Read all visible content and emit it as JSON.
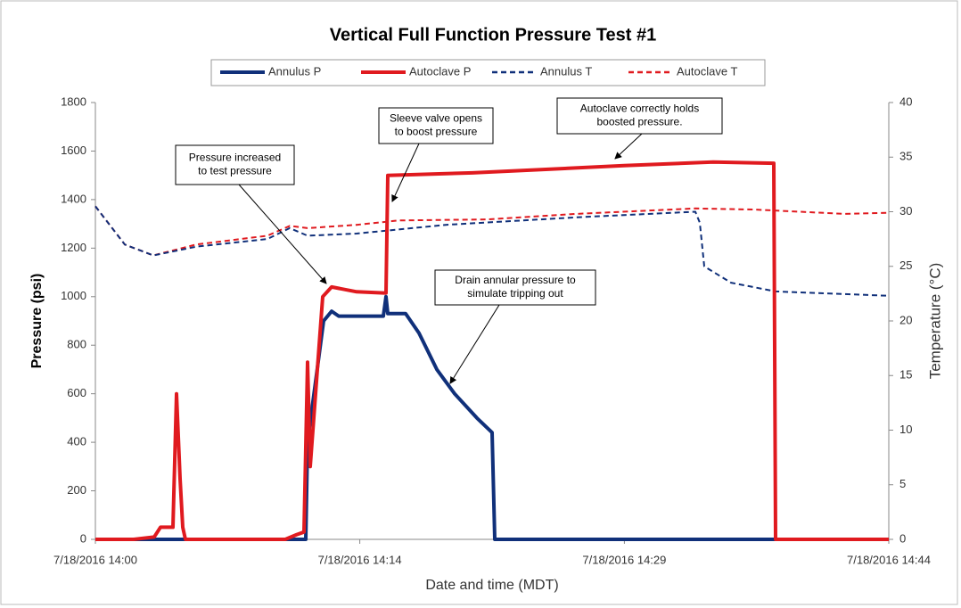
{
  "chart_data": {
    "type": "line",
    "title": "Vertical Full Function Pressure Test #1",
    "xlabel": "Date and time (MDT)",
    "ylabel": "Pressure (psi)",
    "y2label": "Temperature (°C)",
    "legend": "top",
    "xlim": [
      0,
      44.5
    ],
    "xticks": [
      {
        "value": 0,
        "label": "7/18/2016 14:00"
      },
      {
        "value": 14.83,
        "label": "7/18/2016 14:14"
      },
      {
        "value": 29.67,
        "label": "7/18/2016 14:29"
      },
      {
        "value": 44.5,
        "label": "7/18/2016 14:44"
      }
    ],
    "ylim": [
      0,
      1800
    ],
    "yticks": [
      0,
      200,
      400,
      600,
      800,
      1000,
      1200,
      1400,
      1600,
      1800
    ],
    "y2lim": [
      0,
      40
    ],
    "y2ticks": [
      0,
      5,
      10,
      15,
      20,
      25,
      30,
      35,
      40
    ],
    "series": [
      {
        "name": "Annulus P",
        "color": "#10307a",
        "linestyle": "solid",
        "x": [
          0,
          11.8,
          11.9,
          12.8,
          13.25,
          13.65,
          16.15,
          16.3,
          16.4,
          17.4,
          18.15,
          19.15,
          20.15,
          21.4,
          22.25,
          22.4,
          44.5
        ],
        "values": [
          0,
          0,
          400,
          900,
          940,
          920,
          920,
          1000,
          930,
          930,
          850,
          700,
          600,
          500,
          440,
          0,
          0
        ]
      },
      {
        "name": "Autoclave P",
        "color": "#e01a1f",
        "linestyle": "solid",
        "x": [
          0,
          2.15,
          3.3,
          3.65,
          4.35,
          4.55,
          4.75,
          4.9,
          5.05,
          10.65,
          11.3,
          11.7,
          11.9,
          12.05,
          12.75,
          13.25,
          14.65,
          16.3,
          16.4,
          21.15,
          29.65,
          34.65,
          38.05,
          38.15,
          44.5
        ],
        "values": [
          0,
          0,
          10,
          50,
          50,
          600,
          250,
          50,
          0,
          0,
          20,
          30,
          730,
          300,
          1000,
          1040,
          1020,
          1015,
          1500,
          1510,
          1540,
          1555,
          1550,
          0,
          0
        ]
      },
      {
        "name": "Annulus T",
        "color": "#10307a",
        "linestyle": "dashed",
        "axis": "y2",
        "x": [
          0,
          1.65,
          3.25,
          5.65,
          9.65,
          10.9,
          11.9,
          14.65,
          19.65,
          27.15,
          33.65,
          33.9,
          34.15,
          35.65,
          38.15,
          44.5
        ],
        "values": [
          30.5,
          27,
          26,
          26.8,
          27.5,
          28.5,
          27.8,
          28,
          28.8,
          29.5,
          30,
          29,
          25,
          23.5,
          22.7,
          22.3
        ]
      },
      {
        "name": "Autoclave T",
        "color": "#e01a1f",
        "linestyle": "dashed",
        "axis": "y2",
        "x": [
          0,
          1.65,
          3.25,
          5.65,
          9.65,
          10.9,
          11.9,
          14.65,
          17,
          22,
          27,
          33.65,
          37,
          42,
          44.5
        ],
        "values": [
          30.5,
          27,
          26,
          27,
          27.8,
          28.7,
          28.5,
          28.8,
          29.2,
          29.3,
          29.8,
          30.3,
          30.2,
          29.8,
          29.9
        ]
      }
    ],
    "annotations": [
      [
        "Pressure increased",
        "to test pressure"
      ],
      [
        "Sleeve valve opens",
        "to boost pressure"
      ],
      [
        "Autoclave correctly holds",
        "boosted pressure."
      ],
      [
        "Drain annular pressure to",
        "simulate tripping out"
      ]
    ]
  }
}
